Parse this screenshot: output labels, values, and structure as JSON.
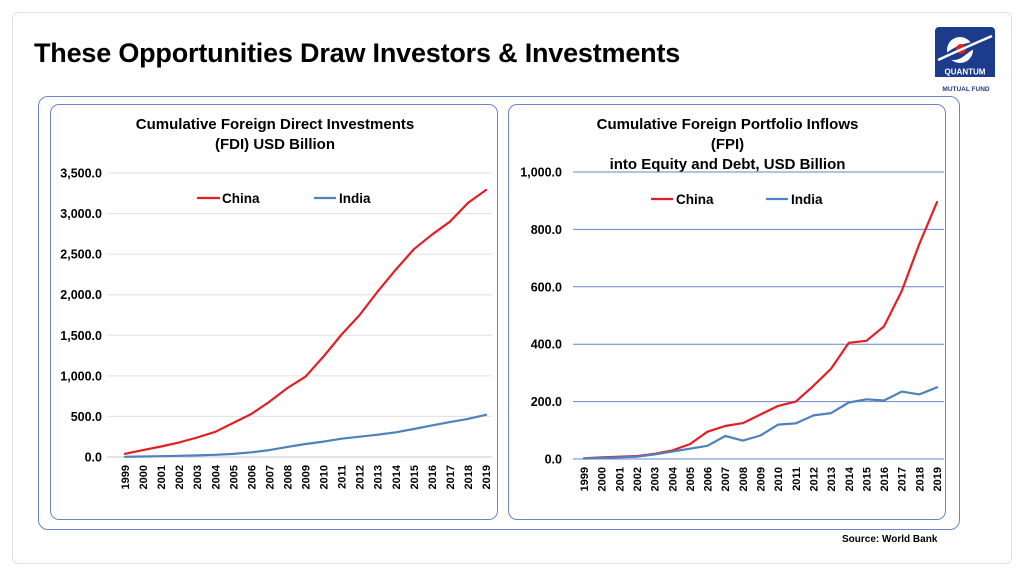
{
  "slide": {
    "title": "These Opportunities Draw Investors & Investments",
    "source": "Source: World Bank",
    "logo": {
      "brand": "QUANTUM",
      "sub": "MUTUAL FUND"
    }
  },
  "colors": {
    "china": "#e31e24",
    "india": "#4f81bd",
    "accent": "#1d3b8b"
  },
  "chart_data": [
    {
      "type": "line",
      "title": "Cumulative Foreign Direct Investments (FDI) USD Billion",
      "title_lines": [
        "Cumulative Foreign Direct Investments",
        "(FDI) USD Billion"
      ],
      "x": [
        "1999",
        "2000",
        "2001",
        "2002",
        "2003",
        "2004",
        "2005",
        "2006",
        "2007",
        "2008",
        "2009",
        "2010",
        "2011",
        "2012",
        "2013",
        "2014",
        "2015",
        "2016",
        "2017",
        "2018",
        "2019"
      ],
      "yticks": [
        "3,500.0",
        "3,000.0",
        "2,500.0",
        "2,000.0",
        "1,500.0",
        "1,000.0",
        "500.0",
        "0.0"
      ],
      "ylim": [
        0,
        3500
      ],
      "grid": true,
      "legend": "top-center",
      "series": [
        {
          "name": "China",
          "color": "#e31e24",
          "values": [
            40,
            85,
            130,
            180,
            240,
            310,
            420,
            530,
            680,
            850,
            990,
            1240,
            1510,
            1750,
            2040,
            2310,
            2560,
            2740,
            2900,
            3130,
            3290
          ]
        },
        {
          "name": "India",
          "color": "#4f81bd",
          "values": [
            3,
            6,
            10,
            15,
            20,
            27,
            38,
            58,
            85,
            125,
            160,
            190,
            225,
            250,
            275,
            305,
            345,
            390,
            430,
            470,
            520
          ]
        }
      ]
    },
    {
      "type": "line",
      "title": "Cumulative Foreign Portfolio Inflows (FPI) into Equity and Debt, USD Billion",
      "title_lines": [
        "Cumulative Foreign Portfolio Inflows",
        "(FPI)",
        "into Equity and Debt, USD Billion"
      ],
      "x": [
        "1999",
        "2000",
        "2001",
        "2002",
        "2003",
        "2004",
        "2005",
        "2006",
        "2007",
        "2008",
        "2009",
        "2010",
        "2011",
        "2012",
        "2013",
        "2014",
        "2015",
        "2016",
        "2017",
        "2018",
        "2019"
      ],
      "yticks": [
        "1,000.0",
        "800.0",
        "600.0",
        "400.0",
        "200.0",
        "0.0"
      ],
      "ylim": [
        0,
        1000
      ],
      "grid": true,
      "legend": "top-center",
      "series": [
        {
          "name": "China",
          "color": "#e31e24",
          "values": [
            2,
            6,
            8,
            10,
            18,
            30,
            52,
            95,
            115,
            125,
            155,
            185,
            200,
            255,
            315,
            405,
            412,
            462,
            585,
            750,
            895
          ]
        },
        {
          "name": "India",
          "color": "#4f81bd",
          "values": [
            1,
            4,
            6,
            8,
            16,
            26,
            36,
            46,
            80,
            64,
            82,
            120,
            124,
            152,
            160,
            197,
            208,
            204,
            235,
            225,
            250
          ]
        }
      ]
    }
  ]
}
